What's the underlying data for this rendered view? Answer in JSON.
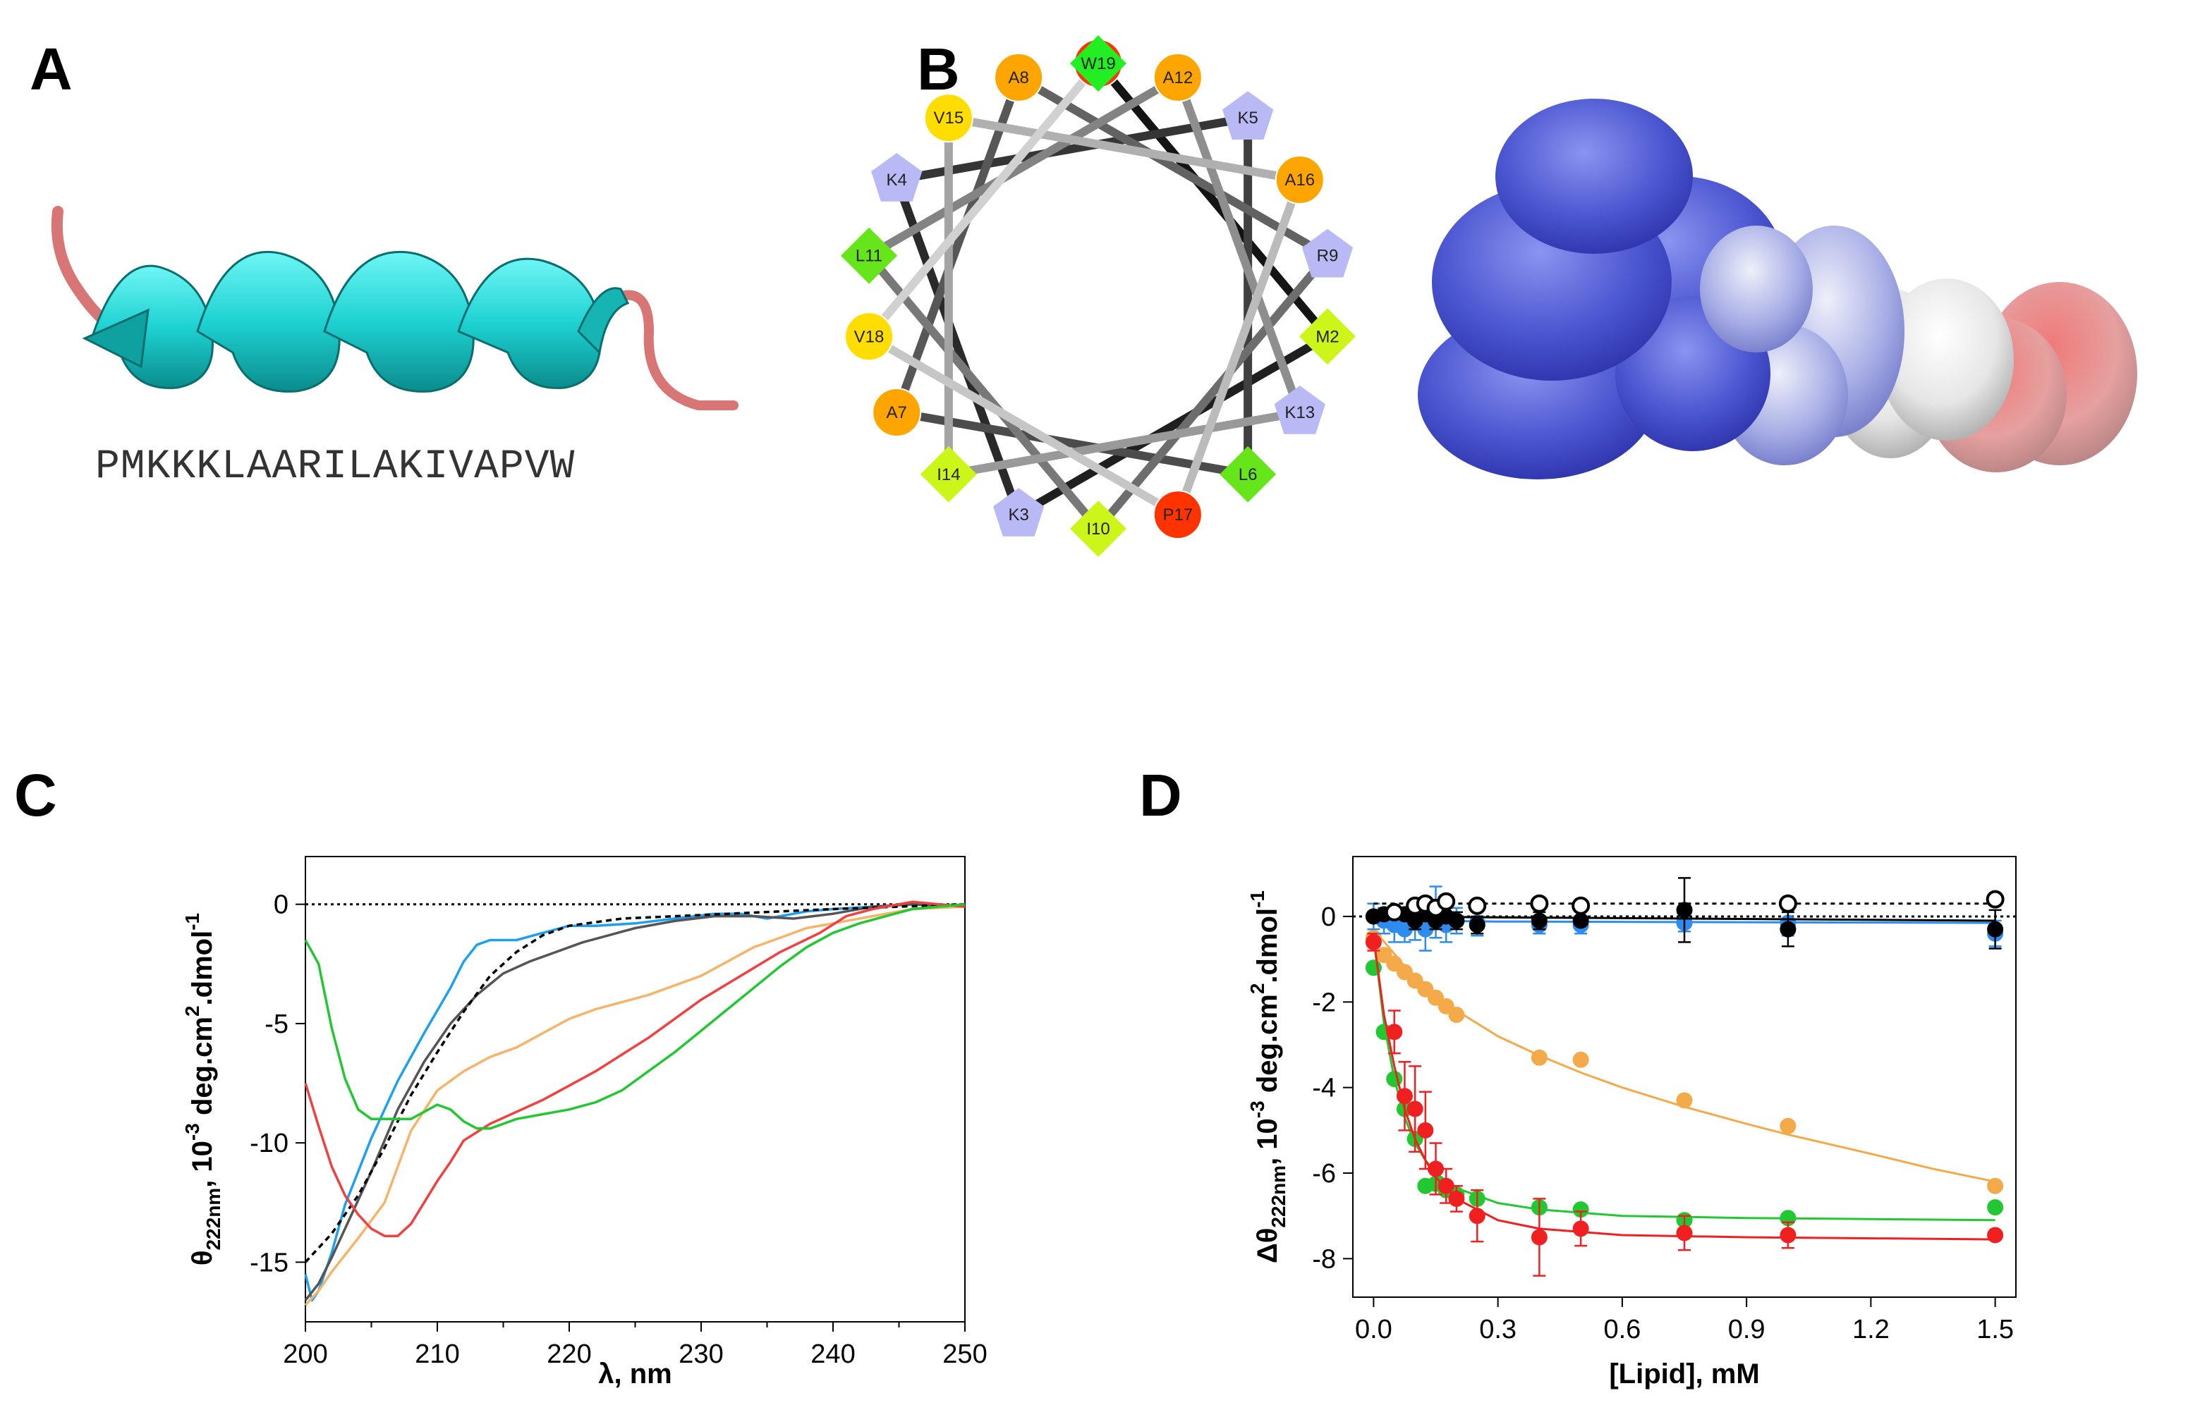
{
  "panels": {
    "a": {
      "letter": "A",
      "sequence": "PMKKKLAARILAKIVAPVW"
    },
    "b": {
      "letter": "B"
    },
    "c": {
      "letter": "C"
    },
    "d": {
      "letter": "D"
    }
  },
  "wheel": {
    "residues": [
      {
        "label": "P1",
        "shape": "circle",
        "color": "#ff3300"
      },
      {
        "label": "M2",
        "shape": "diamond",
        "color": "#ccf51a"
      },
      {
        "label": "K3",
        "shape": "pentagon",
        "color": "#b9b9f5"
      },
      {
        "label": "K4",
        "shape": "pentagon",
        "color": "#b9b9f5"
      },
      {
        "label": "K5",
        "shape": "pentagon",
        "color": "#b9b9f5"
      },
      {
        "label": "L6",
        "shape": "diamond",
        "color": "#66e61a"
      },
      {
        "label": "A7",
        "shape": "circle",
        "color": "#ffa500"
      },
      {
        "label": "A8",
        "shape": "circle",
        "color": "#ffa500"
      },
      {
        "label": "R9",
        "shape": "pentagon",
        "color": "#b9b9f5"
      },
      {
        "label": "I10",
        "shape": "diamond",
        "color": "#ccf51a"
      },
      {
        "label": "L11",
        "shape": "diamond",
        "color": "#66e61a"
      },
      {
        "label": "A12",
        "shape": "circle",
        "color": "#ffa500"
      },
      {
        "label": "K13",
        "shape": "pentagon",
        "color": "#b9b9f5"
      },
      {
        "label": "I14",
        "shape": "diamond",
        "color": "#ccf51a"
      },
      {
        "label": "V15",
        "shape": "circle",
        "color": "#ffdd00"
      },
      {
        "label": "A16",
        "shape": "circle",
        "color": "#ffa500"
      },
      {
        "label": "P17",
        "shape": "circle",
        "color": "#ff3300"
      },
      {
        "label": "V18",
        "shape": "circle",
        "color": "#ffdd00"
      },
      {
        "label": "W19",
        "shape": "diamond",
        "color": "#22ee22"
      }
    ]
  },
  "chart_data": [
    {
      "panel": "C",
      "type": "line",
      "ylabel_main": "θ",
      "ylabel_sub": "222nm",
      "ylabel_rest": ", 10",
      "ylabel_sup": "-3",
      "ylabel_unit": " deg.cm",
      "ylabel_sup2": "2",
      "ylabel_tail": ".dmol",
      "ylabel_sup3": "-1",
      "xlabel": "λ, nm",
      "xlim": [
        200,
        250
      ],
      "ylim": [
        -17.5,
        2
      ],
      "xticks": [
        200,
        210,
        220,
        230,
        240,
        250
      ],
      "yticks": [
        0,
        -5,
        -10,
        -15
      ],
      "series": [
        {
          "name": "blue",
          "color": "#1ea0f0",
          "dash": "",
          "x": [
            200,
            200.5,
            201,
            202,
            203,
            205,
            207,
            209,
            211,
            212,
            213,
            214,
            216,
            218,
            220,
            222,
            225,
            228,
            231,
            233,
            235,
            238,
            240,
            243,
            246,
            250
          ],
          "y": [
            -15.5,
            -16.6,
            -16.2,
            -14.6,
            -12.6,
            -9.8,
            -7.4,
            -5.4,
            -3.5,
            -2.4,
            -1.7,
            -1.5,
            -1.5,
            -1.2,
            -0.9,
            -0.9,
            -0.8,
            -0.6,
            -0.4,
            -0.4,
            -0.6,
            -0.3,
            -0.2,
            -0.1,
            0,
            -0.1
          ]
        },
        {
          "name": "black",
          "color": "#555555",
          "dash": "",
          "x": [
            200,
            201,
            202,
            203,
            205,
            207,
            209,
            211,
            213,
            215,
            217,
            219,
            221,
            223,
            225,
            228,
            231,
            234,
            237,
            240,
            243,
            246,
            250
          ],
          "y": [
            -16.6,
            -15.9,
            -14.8,
            -13.6,
            -11.2,
            -8.6,
            -6.6,
            -5.0,
            -3.8,
            -2.9,
            -2.4,
            -2.0,
            -1.6,
            -1.3,
            -1.0,
            -0.7,
            -0.5,
            -0.5,
            -0.6,
            -0.4,
            -0.1,
            0,
            -0.1
          ]
        },
        {
          "name": "dashed",
          "color": "#000000",
          "dash": "8,6",
          "x": [
            200,
            202,
            204,
            206,
            208,
            210,
            212,
            214,
            216,
            218,
            220,
            224,
            228,
            232,
            236,
            240,
            245,
            250
          ],
          "y": [
            -15.0,
            -13.8,
            -12.2,
            -10.2,
            -8.0,
            -6.2,
            -4.5,
            -3.0,
            -2.0,
            -1.3,
            -0.9,
            -0.6,
            -0.5,
            -0.4,
            -0.3,
            -0.2,
            -0.1,
            0
          ]
        },
        {
          "name": "orange",
          "color": "#f5b46a",
          "dash": "",
          "x": [
            200,
            201,
            202,
            204,
            206,
            208,
            210,
            212,
            214,
            216,
            218,
            220,
            222,
            224,
            226,
            228,
            230,
            232,
            234,
            236,
            238,
            240,
            243,
            246,
            250
          ],
          "y": [
            -16.8,
            -16.2,
            -15.4,
            -14.0,
            -12.5,
            -9.5,
            -7.8,
            -7.0,
            -6.4,
            -6.0,
            -5.4,
            -4.8,
            -4.4,
            -4.1,
            -3.8,
            -3.4,
            -3.0,
            -2.4,
            -1.8,
            -1.4,
            -1.0,
            -0.8,
            -0.5,
            -0.2,
            -0.1
          ]
        },
        {
          "name": "red",
          "color": "#f04040",
          "dash": "",
          "x": [
            200,
            201,
            202,
            203,
            204,
            205,
            206,
            207,
            208,
            209,
            210,
            211,
            212,
            214,
            216,
            218,
            220,
            222,
            224,
            226,
            228,
            230,
            233,
            236,
            239,
            241,
            243,
            246,
            250
          ],
          "y": [
            -7.5,
            -9.3,
            -11.0,
            -12.2,
            -13.0,
            -13.6,
            -13.9,
            -13.9,
            -13.4,
            -12.5,
            -11.6,
            -10.8,
            -9.9,
            -9.2,
            -8.7,
            -8.2,
            -7.6,
            -7.0,
            -6.3,
            -5.6,
            -4.8,
            -4.0,
            -3.0,
            -2.0,
            -1.2,
            -0.5,
            -0.2,
            0.1,
            -0.1
          ]
        },
        {
          "name": "green",
          "color": "#22c832",
          "dash": "",
          "x": [
            200,
            200.5,
            201,
            202,
            203,
            204,
            205,
            206,
            207,
            208,
            209,
            210,
            211,
            212,
            213,
            214,
            215,
            216,
            218,
            220,
            222,
            224,
            226,
            228,
            230,
            232,
            234,
            236,
            238,
            240,
            242,
            244,
            246,
            250
          ],
          "y": [
            -1.5,
            -2.0,
            -2.5,
            -5.2,
            -7.3,
            -8.6,
            -9.0,
            -9.0,
            -9.0,
            -9.0,
            -8.7,
            -8.4,
            -8.6,
            -9.1,
            -9.4,
            -9.4,
            -9.2,
            -9.0,
            -8.8,
            -8.6,
            -8.3,
            -7.8,
            -7.0,
            -6.2,
            -5.3,
            -4.4,
            -3.5,
            -2.6,
            -1.8,
            -1.2,
            -0.8,
            -0.5,
            -0.2,
            0
          ]
        }
      ]
    },
    {
      "panel": "D",
      "type": "scatter",
      "ylabel_main": "Δθ",
      "ylabel_sub": "222nm",
      "ylabel_rest": ", 10",
      "ylabel_sup": "-3",
      "ylabel_unit": " deg.cm",
      "ylabel_sup2": "2",
      "ylabel_tail": ".dmol",
      "ylabel_sup3": "-1",
      "xlabel": "[Lipid], mM",
      "xlim": [
        -0.05,
        1.55
      ],
      "ylim": [
        -8.9,
        1.4
      ],
      "xticks": [
        "0.0",
        "0.3",
        "0.6",
        "0.9",
        "1.2",
        "1.5"
      ],
      "yticks": [
        0,
        -2,
        -4,
        -6,
        -8
      ],
      "series": [
        {
          "name": "orange",
          "color": "#f5aa4a",
          "filled": true,
          "x": [
            0,
            0.025,
            0.05,
            0.075,
            0.1,
            0.125,
            0.15,
            0.175,
            0.2,
            0.4,
            0.5,
            0.75,
            1.0,
            1.5
          ],
          "y": [
            -0.5,
            -0.9,
            -1.1,
            -1.3,
            -1.5,
            -1.7,
            -1.9,
            -2.1,
            -2.3,
            -3.3,
            -3.35,
            -4.3,
            -4.9,
            -6.3
          ],
          "fit": [
            [
              0,
              -0.3
            ],
            [
              0.1,
              -1.45
            ],
            [
              0.2,
              -2.2
            ],
            [
              0.3,
              -2.8
            ],
            [
              0.4,
              -3.25
            ],
            [
              0.5,
              -3.65
            ],
            [
              0.6,
              -4.0
            ],
            [
              0.75,
              -4.45
            ],
            [
              0.9,
              -4.85
            ],
            [
              1.0,
              -5.1
            ],
            [
              1.2,
              -5.55
            ],
            [
              1.35,
              -5.9
            ],
            [
              1.5,
              -6.2
            ]
          ]
        },
        {
          "name": "green",
          "color": "#22c832",
          "filled": true,
          "x": [
            0,
            0.025,
            0.05,
            0.075,
            0.1,
            0.125,
            0.15,
            0.175,
            0.2,
            0.25,
            0.4,
            0.5,
            0.75,
            1.0,
            1.5
          ],
          "y": [
            -1.2,
            -2.7,
            -3.8,
            -4.5,
            -5.2,
            -6.3,
            -6.25,
            -6.4,
            -6.5,
            -6.6,
            -6.8,
            -6.85,
            -7.1,
            -7.05,
            -6.8
          ],
          "fit": [
            [
              0,
              -0.5
            ],
            [
              0.025,
              -2.5
            ],
            [
              0.05,
              -3.8
            ],
            [
              0.075,
              -4.7
            ],
            [
              0.1,
              -5.3
            ],
            [
              0.125,
              -5.7
            ],
            [
              0.15,
              -6.0
            ],
            [
              0.2,
              -6.35
            ],
            [
              0.3,
              -6.7
            ],
            [
              0.4,
              -6.85
            ],
            [
              0.6,
              -7.0
            ],
            [
              0.9,
              -7.05
            ],
            [
              1.5,
              -7.1
            ]
          ]
        },
        {
          "name": "red",
          "color": "#f02020",
          "filled": true,
          "x": [
            0,
            0.05,
            0.075,
            0.1,
            0.125,
            0.15,
            0.175,
            0.2,
            0.25,
            0.4,
            0.5,
            0.75,
            1.0,
            1.5
          ],
          "y": [
            -0.6,
            -2.7,
            -4.2,
            -4.5,
            -5.0,
            -5.9,
            -6.3,
            -6.6,
            -7.0,
            -7.5,
            -7.3,
            -7.4,
            -7.45,
            -7.45
          ],
          "err": [
            0.2,
            0.5,
            0.8,
            1.0,
            0.9,
            0.6,
            0.4,
            0.3,
            0.6,
            0.9,
            0.4,
            0.4,
            0.3,
            0.1
          ],
          "fit": [
            [
              0,
              -0.5
            ],
            [
              0.025,
              -2.3
            ],
            [
              0.05,
              -3.5
            ],
            [
              0.075,
              -4.5
            ],
            [
              0.1,
              -5.2
            ],
            [
              0.125,
              -5.7
            ],
            [
              0.15,
              -6.1
            ],
            [
              0.2,
              -6.6
            ],
            [
              0.3,
              -7.1
            ],
            [
              0.4,
              -7.3
            ],
            [
              0.6,
              -7.45
            ],
            [
              0.9,
              -7.5
            ],
            [
              1.5,
              -7.55
            ]
          ]
        },
        {
          "name": "blue",
          "color": "#2d8cf0",
          "filled": true,
          "x": [
            0,
            0.025,
            0.05,
            0.075,
            0.1,
            0.125,
            0.15,
            0.175,
            0.2,
            0.25,
            0.4,
            0.5,
            0.75,
            1.0,
            1.5
          ],
          "y": [
            0,
            -0.1,
            -0.2,
            -0.3,
            -0.15,
            -0.3,
            0.1,
            -0.2,
            -0.1,
            -0.15,
            -0.2,
            -0.2,
            -0.15,
            -0.15,
            -0.4
          ],
          "err": [
            0.3,
            0.3,
            0.4,
            0.3,
            0.4,
            0.5,
            0.6,
            0.4,
            0.3,
            0.3,
            0.2,
            0.2,
            0.2,
            0.3,
            0.3
          ],
          "fit": [
            [
              0,
              0
            ],
            [
              0.1,
              -0.1
            ],
            [
              0.3,
              -0.12
            ],
            [
              1.5,
              -0.15
            ]
          ]
        },
        {
          "name": "black",
          "color": "#000000",
          "filled": true,
          "x": [
            0,
            0.025,
            0.05,
            0.075,
            0.1,
            0.125,
            0.15,
            0.175,
            0.2,
            0.25,
            0.4,
            0.5,
            0.75,
            1.0,
            1.5
          ],
          "y": [
            0,
            0.05,
            0.1,
            0.05,
            -0.1,
            0.05,
            -0.1,
            0,
            -0.1,
            -0.2,
            -0.1,
            -0.1,
            0.15,
            -0.3,
            -0.3
          ],
          "err": [
            0.1,
            0.1,
            0.1,
            0.1,
            0.2,
            0.1,
            0.2,
            0.1,
            0.2,
            0.2,
            0.2,
            0.1,
            0.75,
            0.4,
            0.45
          ],
          "fit": [
            [
              0,
              0
            ],
            [
              1.5,
              -0.1
            ]
          ]
        },
        {
          "name": "open",
          "color": "#000000",
          "filled": false,
          "x": [
            0.05,
            0.1,
            0.125,
            0.15,
            0.175,
            0.25,
            0.4,
            0.5,
            1.0,
            1.5
          ],
          "y": [
            0.1,
            0.25,
            0.3,
            0.2,
            0.35,
            0.25,
            0.3,
            0.25,
            0.3,
            0.4
          ],
          "fit": [
            [
              0,
              0.3
            ],
            [
              1.5,
              0.3
            ]
          ]
        }
      ]
    }
  ]
}
